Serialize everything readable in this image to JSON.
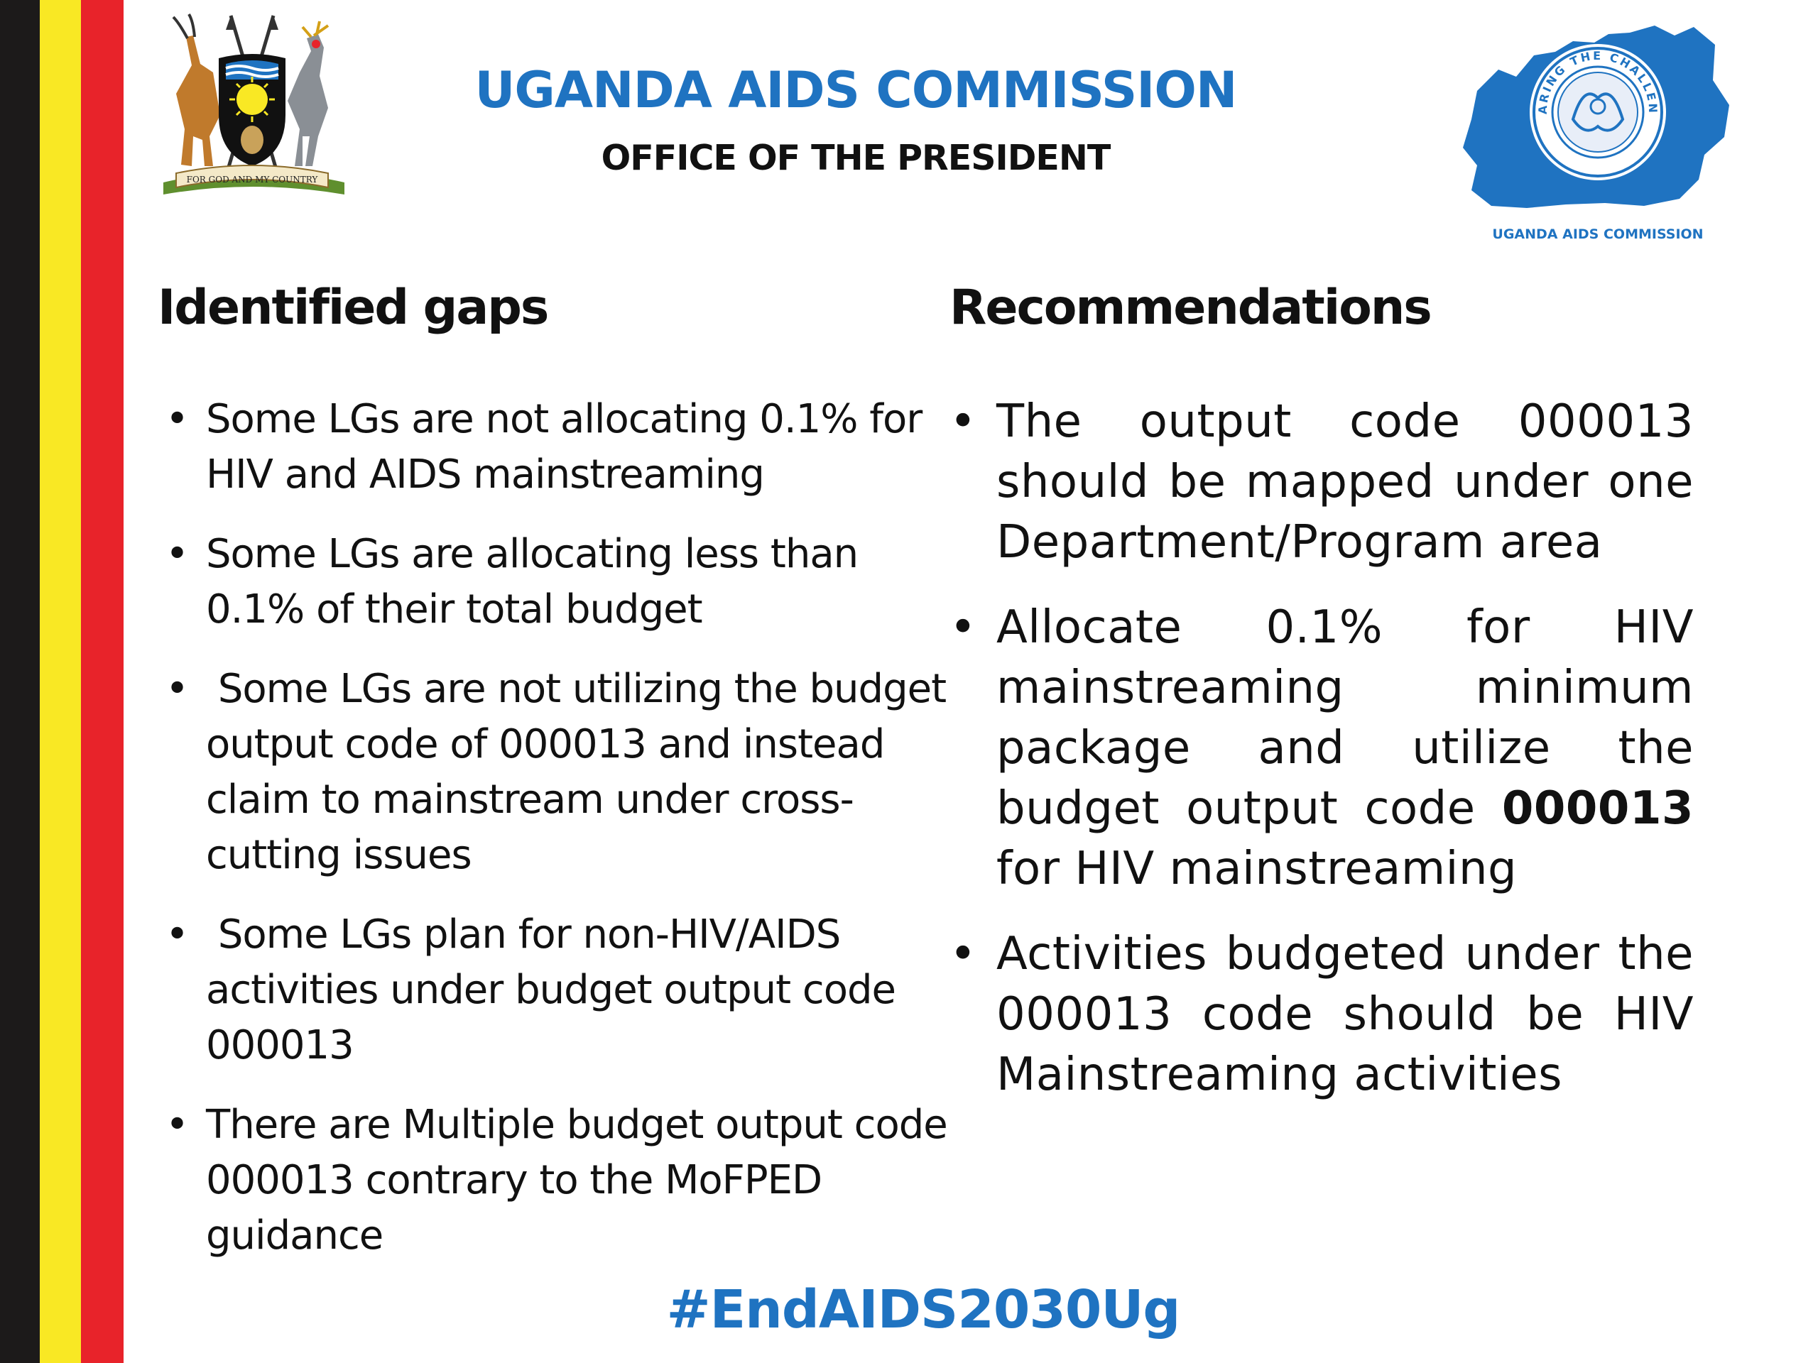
{
  "colors": {
    "brand_blue": "#1f73c1",
    "flag_black": "#1c1a1a",
    "flag_yellow": "#f9e824",
    "flag_red": "#e8232a"
  },
  "header": {
    "title": "UGANDA AIDS COMMISSION",
    "subtitle": "OFFICE OF THE PRESIDENT",
    "coat_of_arms_motto": "FOR GOD AND MY COUNTRY",
    "logo_ring_text": "SHARING THE CHALLENGE",
    "logo_caption": "UGANDA AIDS COMMISSION"
  },
  "gaps": {
    "heading": "Identified gaps",
    "items": [
      "Some LGs are not allocating 0.1% for HIV and AIDS mainstreaming",
      "Some LGs are allocating less than 0.1% of their total budget",
      " Some LGs are not utilizing the budget output code of 000013 and instead claim to mainstream under cross-cutting issues",
      " Some LGs plan for non-HIV/AIDS activities under budget output code 000013",
      "There are Multiple budget output code 000013 contrary to the MoFPED guidance"
    ]
  },
  "recommendations": {
    "heading": "Recommendations",
    "items": [
      {
        "before": "The output code 000013 should be mapped under one Department/Program area",
        "bold": "",
        "after": ""
      },
      {
        "before": "Allocate 0.1% for HIV mainstreaming minimum package and utilize the budget output code ",
        "bold": "000013",
        "after": " for HIV mainstreaming"
      },
      {
        "before": "Activities budgeted under the 000013 code should be HIV Mainstreaming activities",
        "bold": "",
        "after": ""
      }
    ]
  },
  "footer": {
    "hashtag": "#EndAIDS2030Ug"
  }
}
